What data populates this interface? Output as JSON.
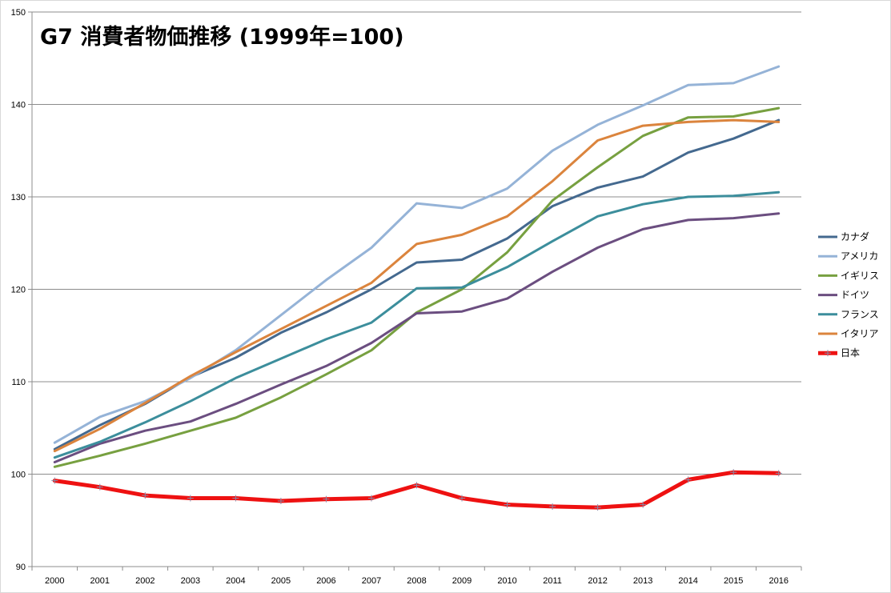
{
  "chart_data": {
    "type": "line",
    "title": "G7 消費者物価推移 (1999年=100)",
    "xlabel": "",
    "ylabel": "",
    "ylim": [
      90,
      150
    ],
    "yticks": [
      90,
      100,
      110,
      120,
      130,
      140,
      150
    ],
    "grid": true,
    "legend_position": "right",
    "x": [
      "2000",
      "2001",
      "2002",
      "2003",
      "2004",
      "2005",
      "2006",
      "2007",
      "2008",
      "2009",
      "2010",
      "2011",
      "2012",
      "2013",
      "2014",
      "2015",
      "2016"
    ],
    "series": [
      {
        "name": "カナダ",
        "color": "#44698F",
        "width": 3,
        "values": [
          102.7,
          105.3,
          107.6,
          110.5,
          112.6,
          115.3,
          117.5,
          120.0,
          122.9,
          123.2,
          125.5,
          129.0,
          131.0,
          132.2,
          134.8,
          136.3,
          138.3
        ]
      },
      {
        "name": "アメリカ",
        "color": "#95B3D7",
        "width": 3,
        "values": [
          103.4,
          106.2,
          107.9,
          110.4,
          113.4,
          117.2,
          121.0,
          124.5,
          129.3,
          128.8,
          130.9,
          135.0,
          137.8,
          139.9,
          142.1,
          142.3,
          144.1
        ]
      },
      {
        "name": "イギリス",
        "color": "#77A040",
        "width": 3,
        "values": [
          100.8,
          102.0,
          103.3,
          104.7,
          106.1,
          108.3,
          110.8,
          113.4,
          117.5,
          120.0,
          124.0,
          129.6,
          133.2,
          136.6,
          138.6,
          138.7,
          139.6
        ]
      },
      {
        "name": "ドイツ",
        "color": "#6B4E80",
        "width": 3,
        "values": [
          101.3,
          103.3,
          104.7,
          105.7,
          107.6,
          109.7,
          111.7,
          114.2,
          117.4,
          117.6,
          119.0,
          121.9,
          124.5,
          126.5,
          127.5,
          127.7,
          128.2
        ]
      },
      {
        "name": "フランス",
        "color": "#3C8E9C",
        "width": 3,
        "values": [
          101.8,
          103.5,
          105.6,
          107.9,
          110.4,
          112.5,
          114.6,
          116.4,
          120.1,
          120.2,
          122.4,
          125.2,
          127.9,
          129.2,
          130.0,
          130.1,
          130.5
        ]
      },
      {
        "name": "イタリア",
        "color": "#DB843D",
        "width": 3,
        "values": [
          102.5,
          104.9,
          107.7,
          110.6,
          113.2,
          115.7,
          118.2,
          120.7,
          124.9,
          125.9,
          127.9,
          131.7,
          136.1,
          137.7,
          138.1,
          138.3,
          138.1
        ]
      },
      {
        "name": "日本",
        "color": "#EE1111",
        "width": 5,
        "marker": "plus",
        "values": [
          99.3,
          98.6,
          97.7,
          97.4,
          97.4,
          97.1,
          97.3,
          97.4,
          98.8,
          97.4,
          96.7,
          96.5,
          96.4,
          96.7,
          99.4,
          100.2,
          100.1
        ]
      }
    ]
  }
}
